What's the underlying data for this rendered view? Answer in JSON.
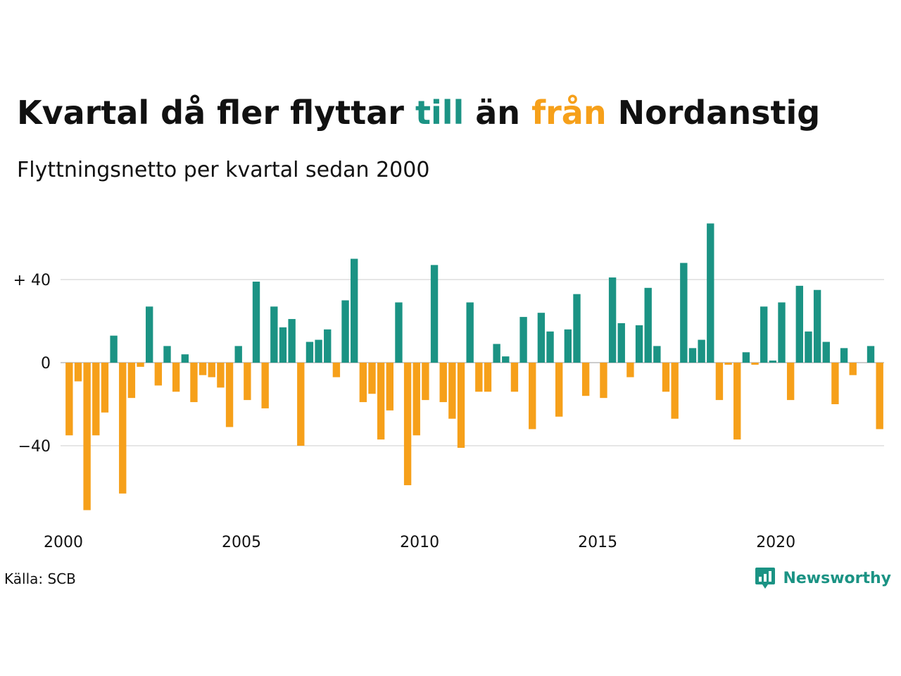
{
  "title": {
    "part1": "Kvartal då fler flyttar ",
    "till": "till",
    "part2": " än ",
    "fran": "från",
    "part3": " Nordanstig"
  },
  "subtitle": "Flyttningsnetto per kvartal sedan 2000",
  "source": "Källa: SCB",
  "brand": {
    "name": "Newsworthy",
    "icon": "newsworthy-logo-icon"
  },
  "colors": {
    "positive": "#1b9384",
    "negative": "#f6a01a",
    "text": "#111111",
    "grid": "#dddddd"
  },
  "chart_data": {
    "type": "bar",
    "x_start": "2000 Q1",
    "x_ticks": [
      "2000",
      "2005",
      "2010",
      "2015",
      "2020"
    ],
    "y_ticks": [
      "+ 40",
      "0",
      "−40"
    ],
    "y_tick_values": [
      40,
      0,
      -40
    ],
    "ylim": [
      -72,
      68
    ],
    "grid": true,
    "values": [
      -35,
      -9,
      -71,
      -35,
      -24,
      13,
      -63,
      -17,
      -2,
      27,
      -11,
      8,
      -14,
      4,
      -19,
      -6,
      -7,
      -12,
      -31,
      8,
      -18,
      39,
      -22,
      27,
      17,
      21,
      -40,
      10,
      11,
      16,
      -7,
      30,
      50,
      -19,
      -15,
      -37,
      -23,
      29,
      -59,
      -35,
      -18,
      47,
      -19,
      -27,
      -41,
      29,
      -14,
      -14,
      9,
      3,
      -14,
      22,
      -32,
      24,
      15,
      -26,
      16,
      33,
      -16,
      0,
      -17,
      41,
      19,
      -7,
      18,
      36,
      8,
      -14,
      -27,
      48,
      7,
      11,
      67,
      -18,
      -1,
      -37,
      5,
      -1,
      27,
      1,
      29,
      -18,
      37,
      15,
      35,
      10,
      -20,
      7,
      -6,
      0,
      8,
      -32
    ]
  }
}
